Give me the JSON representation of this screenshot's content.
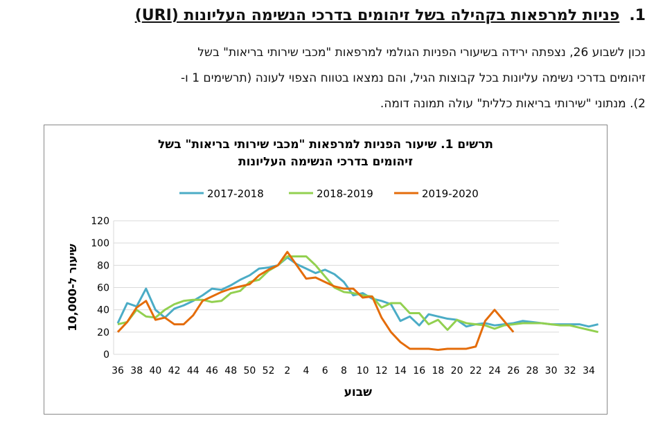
{
  "heading": {
    "number": "1.",
    "title": "פניות למרפאות בקהילה בשל זיהומים בדרכי הנשימה העליונות (URI)"
  },
  "paragraph": [
    "נכון לשבוע 26, נצפתה ירידה בשיעורי הפניות הגולמי למרפאות \"מכבי שירותי בריאות\" בשל",
    "זיהומים בדרכי נשימה עליונות בכל קבוצות הגיל, והם נמצאו בטווח הצפוי לעונה (תרשימים 1 ו-",
    "2). מנתוני \"שירותי בריאות כללית\" עולה תמונה דומה."
  ],
  "chart_data": {
    "type": "line",
    "title": [
      "תרשים 1. שיעור הפניות למרפאות  \"מכבי שירותי בריאות\"  בשל",
      "זיהומים בדרכי הנשימה העליונות"
    ],
    "xlabel": "שבוע",
    "ylabel": "שיעור ל-10,000",
    "ylim": [
      0,
      120
    ],
    "yticks": [
      0,
      20,
      40,
      60,
      80,
      100,
      120
    ],
    "grid": true,
    "legend": "top",
    "x": [
      36,
      37,
      38,
      39,
      40,
      41,
      42,
      43,
      44,
      45,
      46,
      47,
      48,
      49,
      50,
      51,
      52,
      1,
      2,
      3,
      4,
      5,
      6,
      7,
      8,
      9,
      10,
      11,
      12,
      13,
      14,
      15,
      16,
      17,
      18,
      19,
      20,
      21,
      22,
      23,
      24,
      25,
      26,
      27,
      28,
      29,
      30,
      31,
      32,
      33,
      34,
      35
    ],
    "xticks": [
      "36",
      "38",
      "40",
      "42",
      "44",
      "46",
      "48",
      "50",
      "52",
      "2",
      "4",
      "6",
      "8",
      "10",
      "12",
      "14",
      "16",
      "18",
      "20",
      "22",
      "24",
      "26",
      "28",
      "30",
      "32",
      "34"
    ],
    "series": [
      {
        "name": "2017-2018",
        "color": "#4BACC6",
        "values": [
          28,
          46,
          43,
          59,
          40,
          33,
          41,
          44,
          48,
          53,
          59,
          58,
          62,
          67,
          71,
          77,
          78,
          80,
          87,
          81,
          77,
          73,
          76,
          72,
          65,
          53,
          55,
          50,
          48,
          45,
          30,
          34,
          26,
          36,
          34,
          32,
          31,
          25,
          27,
          28,
          26,
          27,
          28,
          30,
          29,
          28,
          27,
          27,
          27,
          27,
          25,
          27
        ]
      },
      {
        "name": "2018-2019",
        "color": "#92D050",
        "values": [
          27,
          29,
          40,
          34,
          33,
          40,
          45,
          48,
          49,
          49,
          47,
          48,
          55,
          57,
          65,
          67,
          75,
          80,
          88,
          88,
          88,
          80,
          70,
          60,
          56,
          55,
          53,
          52,
          42,
          46,
          46,
          37,
          37,
          27,
          31,
          22,
          31,
          28,
          27,
          26,
          23,
          26,
          27,
          28,
          28,
          28,
          27,
          26,
          26,
          24,
          22,
          20
        ]
      },
      {
        "name": "2019-2020",
        "color": "#E46C0A",
        "values": [
          20,
          29,
          42,
          48,
          31,
          33,
          27,
          27,
          35,
          48,
          52,
          56,
          59,
          61,
          63,
          71,
          76,
          80,
          92,
          80,
          68,
          69,
          65,
          61,
          59,
          59,
          51,
          52,
          33,
          20,
          11,
          5,
          5,
          5,
          4,
          5,
          5,
          5,
          7,
          30,
          40,
          30,
          20,
          null,
          null,
          null,
          null,
          null,
          null,
          null,
          null,
          null
        ]
      }
    ]
  }
}
